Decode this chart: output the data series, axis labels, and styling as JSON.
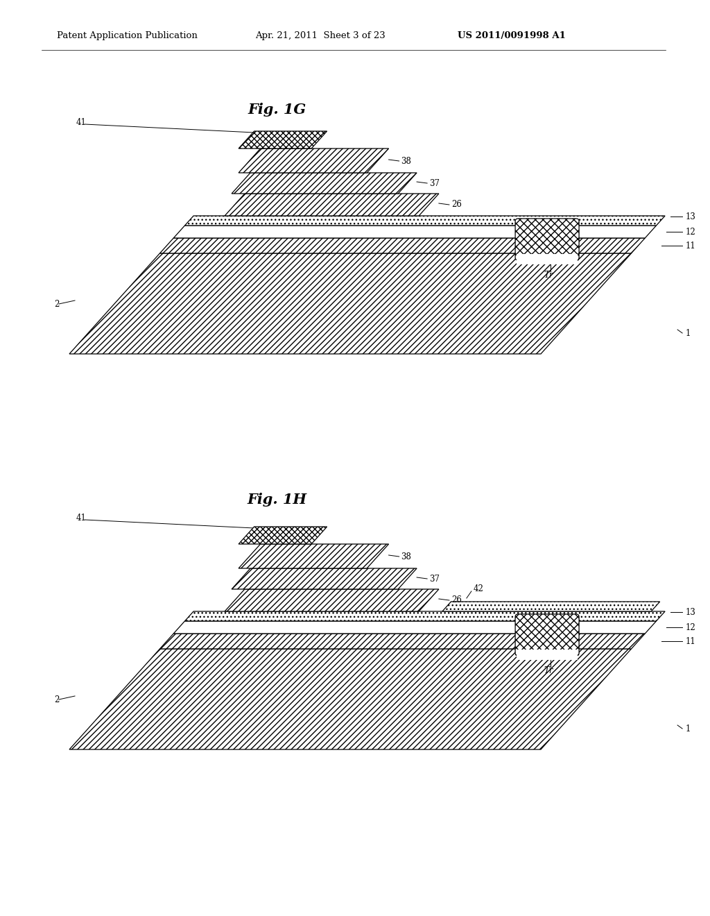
{
  "bg_color": "#ffffff",
  "header_left": "Patent Application Publication",
  "header_middle": "Apr. 21, 2011  Sheet 3 of 23",
  "header_right": "US 2011/0091998 A1",
  "fig1g_title": "Fig. 1G",
  "fig1h_title": "Fig. 1H",
  "line_color": "#000000"
}
